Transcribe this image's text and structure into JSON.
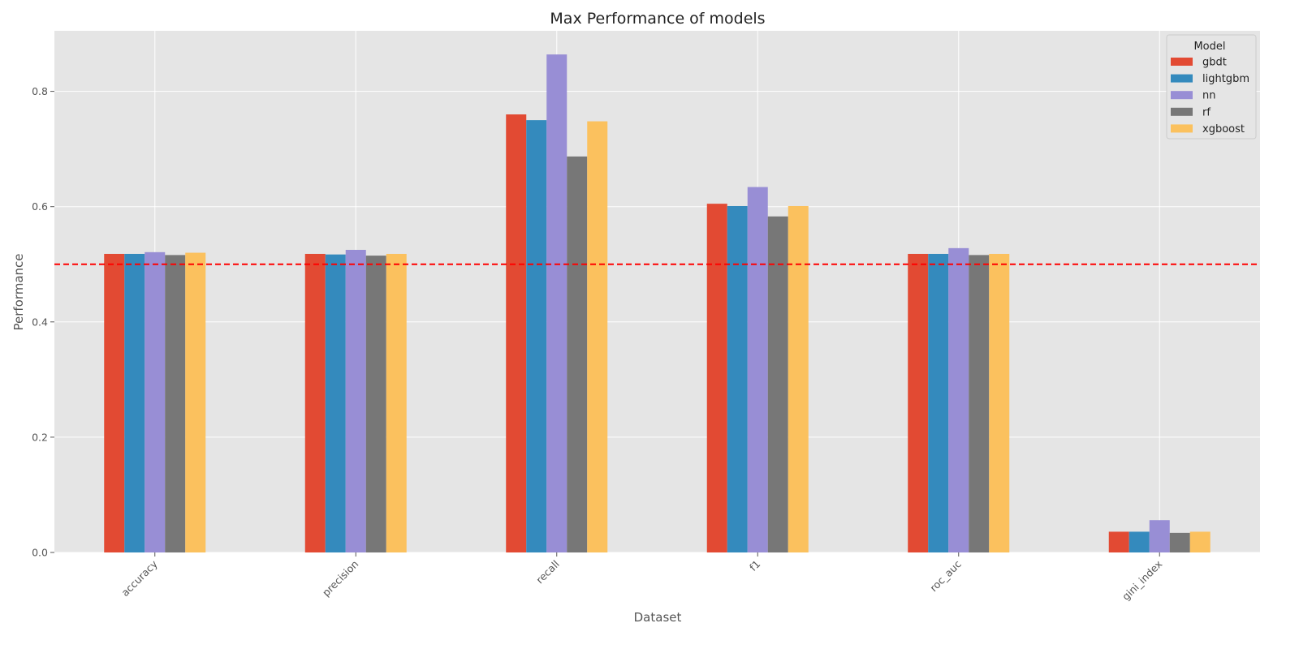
{
  "chart_data": {
    "type": "bar",
    "title": "Max Performance of models",
    "xlabel": "Dataset",
    "ylabel": "Performance",
    "categories": [
      "accuracy",
      "precision",
      "recall",
      "f1",
      "roc_auc",
      "gini_index"
    ],
    "ylim": [
      0,
      0.905
    ],
    "yticks": [
      0.0,
      0.2,
      0.4,
      0.6,
      0.8
    ],
    "ytick_labels": [
      "0.0",
      "0.2",
      "0.4",
      "0.6",
      "0.8"
    ],
    "grid": true,
    "legend": {
      "title": "Model",
      "placement": "top-right"
    },
    "reference_line": {
      "value": 0.5,
      "color": "#ff0000",
      "style": "dashed"
    },
    "series": [
      {
        "name": "gbdt",
        "color": "#E24A33",
        "values": [
          0.518,
          0.518,
          0.76,
          0.605,
          0.518,
          0.036
        ]
      },
      {
        "name": "lightgbm",
        "color": "#348ABD",
        "values": [
          0.518,
          0.517,
          0.75,
          0.601,
          0.518,
          0.036
        ]
      },
      {
        "name": "nn",
        "color": "#988ED5",
        "values": [
          0.521,
          0.525,
          0.864,
          0.634,
          0.528,
          0.056
        ]
      },
      {
        "name": "rf",
        "color": "#777777",
        "values": [
          0.516,
          0.515,
          0.687,
          0.583,
          0.516,
          0.034
        ]
      },
      {
        "name": "xgboost",
        "color": "#FBC15E",
        "values": [
          0.52,
          0.518,
          0.748,
          0.601,
          0.518,
          0.036
        ]
      }
    ]
  }
}
